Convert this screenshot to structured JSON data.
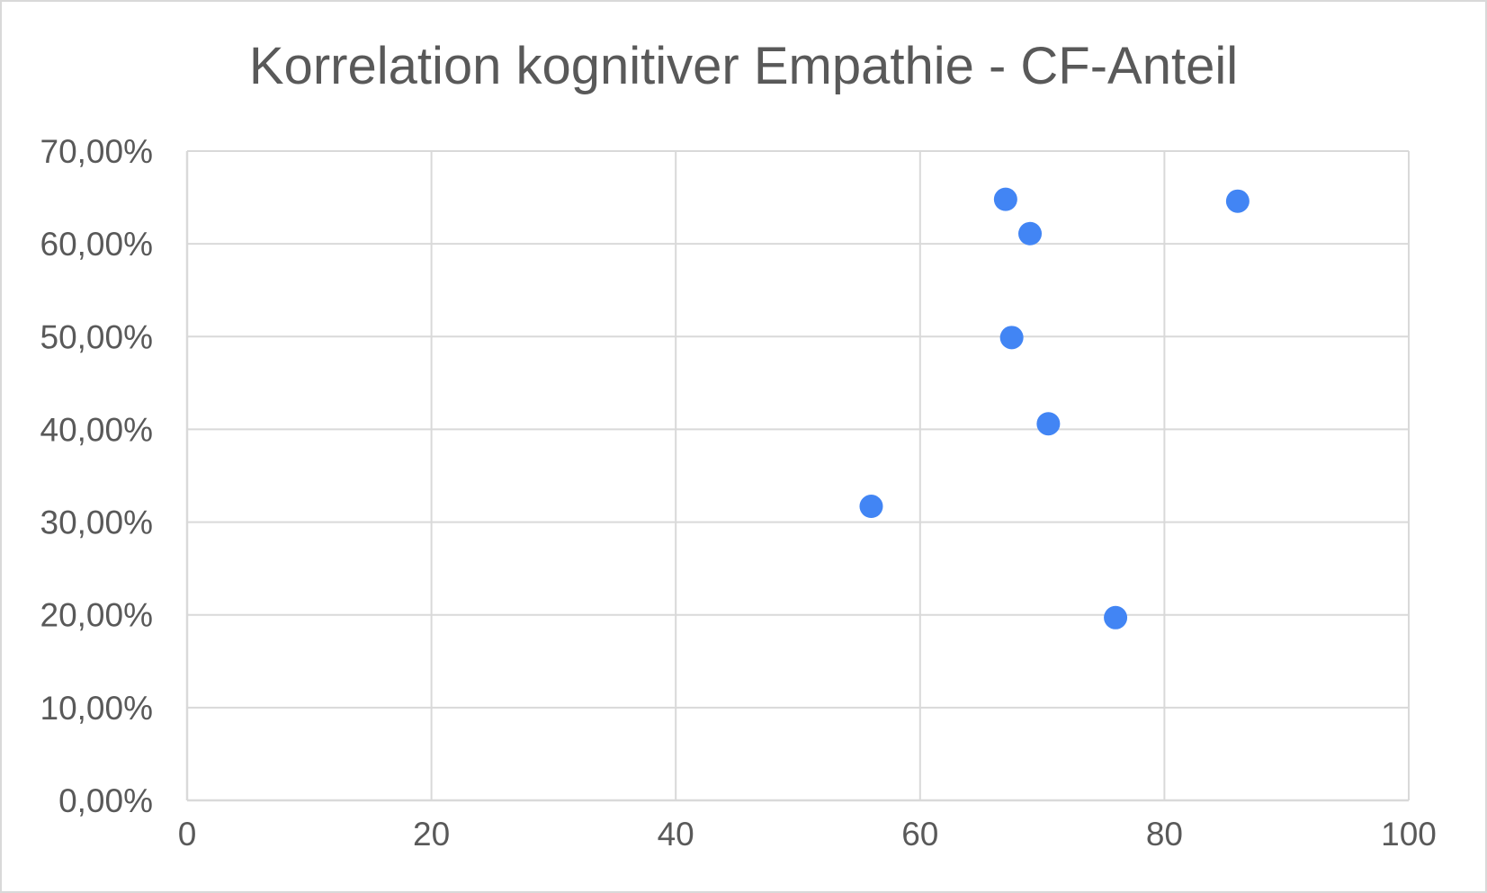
{
  "chart_data": {
    "type": "scatter",
    "title": "Korrelation kognitiver Empathie - CF-Anteil",
    "xlabel": "",
    "ylabel": "",
    "xlim": [
      0,
      100
    ],
    "ylim": [
      0,
      0.7
    ],
    "x_ticks": [
      {
        "value": 0,
        "label": "0"
      },
      {
        "value": 20,
        "label": "20"
      },
      {
        "value": 40,
        "label": "40"
      },
      {
        "value": 60,
        "label": "60"
      },
      {
        "value": 80,
        "label": "80"
      },
      {
        "value": 100,
        "label": "100"
      }
    ],
    "y_ticks": [
      {
        "value": 0.0,
        "label": "0,00%"
      },
      {
        "value": 0.1,
        "label": "10,00%"
      },
      {
        "value": 0.2,
        "label": "20,00%"
      },
      {
        "value": 0.3,
        "label": "30,00%"
      },
      {
        "value": 0.4,
        "label": "40,00%"
      },
      {
        "value": 0.5,
        "label": "50,00%"
      },
      {
        "value": 0.6,
        "label": "60,00%"
      },
      {
        "value": 0.7,
        "label": "70,00%"
      }
    ],
    "grid": true,
    "legend": "none",
    "series": [
      {
        "color": "#4285f4",
        "points": [
          {
            "x": 67,
            "y": 0.648
          },
          {
            "x": 86,
            "y": 0.646
          },
          {
            "x": 69,
            "y": 0.611
          },
          {
            "x": 67.5,
            "y": 0.499
          },
          {
            "x": 70.5,
            "y": 0.406
          },
          {
            "x": 56,
            "y": 0.317
          },
          {
            "x": 76,
            "y": 0.197
          }
        ]
      }
    ]
  }
}
